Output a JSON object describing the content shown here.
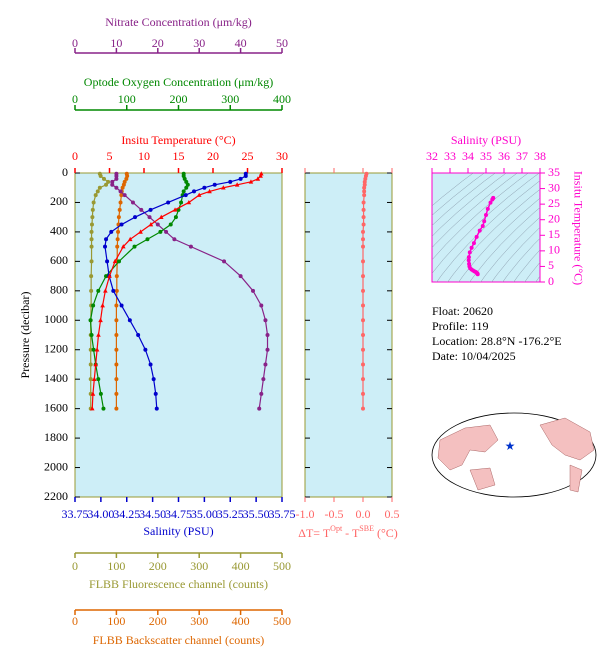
{
  "chart_data": [
    {
      "type": "profile",
      "ylabel": "Pressure (decibar)",
      "ylim": [
        0,
        2200
      ],
      "yticks": [
        0,
        200,
        400,
        600,
        800,
        1000,
        1200,
        1400,
        1600,
        1800,
        2000,
        2200
      ],
      "pressure": [
        5,
        20,
        40,
        60,
        80,
        100,
        125,
        150,
        200,
        250,
        300,
        350,
        400,
        450,
        500,
        600,
        700,
        800,
        900,
        1000,
        1100,
        1200,
        1300,
        1400,
        1500,
        1600
      ],
      "series": [
        {
          "name": "Insitu Temperature (°C)",
          "color": "#ff0000",
          "xlim": [
            0,
            30
          ],
          "xticks": [
            0,
            5,
            10,
            15,
            20,
            25,
            30
          ],
          "values": [
            27.0,
            26.9,
            26.5,
            25.5,
            23.5,
            21.5,
            19.5,
            18.0,
            16.5,
            14.5,
            12.5,
            11.0,
            9.5,
            8.0,
            7.0,
            5.8,
            5.0,
            4.4,
            4.0,
            3.7,
            3.4,
            3.2,
            3.0,
            2.8,
            2.6,
            2.5
          ]
        },
        {
          "name": "Salinity (PSU)",
          "color": "#0000cc",
          "xlim": [
            33.75,
            35.75
          ],
          "xticks": [
            33.75,
            {
              "value": 34,
              "label": "34.00"
            },
            34.25,
            {
              "value": 34.5,
              "label": "34.50"
            },
            34.75,
            {
              "value": 35,
              "label": "35.00"
            },
            35.25,
            {
              "value": 35.5,
              "label": "35.50"
            },
            35.75
          ],
          "values": [
            35.4,
            35.4,
            35.35,
            35.25,
            35.1,
            35.0,
            34.9,
            34.82,
            34.65,
            34.48,
            34.33,
            34.2,
            34.1,
            34.05,
            34.04,
            34.06,
            34.08,
            34.12,
            34.2,
            34.28,
            34.36,
            34.43,
            34.48,
            34.51,
            34.53,
            34.54
          ]
        },
        {
          "name": "Optode Oxygen Concentration (μm/kg)",
          "color": "#008800",
          "xlim": [
            0,
            400
          ],
          "xticks": [
            0,
            100,
            200,
            300,
            400
          ],
          "values": [
            210,
            210,
            212,
            215,
            218,
            215,
            210,
            208,
            205,
            200,
            195,
            185,
            165,
            140,
            115,
            85,
            60,
            45,
            35,
            30,
            32,
            36,
            40,
            45,
            50,
            55
          ]
        },
        {
          "name": "Nitrate Concentration (μm/kg)",
          "color": "#882288",
          "xlim": [
            0,
            50
          ],
          "xticks": [
            0,
            10,
            20,
            30,
            40,
            50
          ],
          "values": [
            10,
            10,
            10,
            9,
            9,
            10,
            11,
            12,
            14,
            16,
            18,
            20,
            22,
            24,
            28,
            36,
            40,
            43,
            45,
            46,
            46.5,
            46.5,
            46,
            45.5,
            45,
            44.5
          ]
        },
        {
          "name": "FLBB Fluorescence channel (counts)",
          "color": "#999933",
          "xlim": [
            0,
            500
          ],
          "xticks": [
            0,
            100,
            200,
            300,
            400,
            500
          ],
          "values": [
            60,
            62,
            70,
            80,
            75,
            60,
            55,
            50,
            45,
            43,
            42,
            41,
            40,
            40,
            40,
            40,
            39,
            39,
            39,
            38,
            38,
            38,
            38,
            38,
            38,
            38
          ]
        },
        {
          "name": "FLBB Backscatter channel (counts)",
          "color": "#dd6600",
          "xlim": [
            0,
            500
          ],
          "xticks": [
            0,
            100,
            200,
            300,
            400,
            500
          ],
          "values": [
            125,
            126,
            124,
            120,
            118,
            115,
            113,
            112,
            110,
            108,
            106,
            105,
            104,
            103,
            102,
            102,
            101,
            101,
            100,
            100,
            100,
            100,
            100,
            100,
            100,
            100
          ]
        }
      ]
    },
    {
      "type": "profile",
      "xlabel": [
        "ΔT= T",
        "Opt",
        " - T",
        "SBE",
        " (°C)"
      ],
      "color": "#ff6666",
      "xlim": [
        -1,
        0.5
      ],
      "xticks": [
        {
          "value": -1,
          "label": "-1.0"
        },
        -0.5,
        {
          "value": 0,
          "label": "0.0"
        },
        0.5
      ],
      "values": [
        0.06,
        0.05,
        0.04,
        0.03,
        0.03,
        0.02,
        0.02,
        0.02,
        0.01,
        0.01,
        0.01,
        0.01,
        0.0,
        0.0,
        0.0,
        0.0,
        0.0,
        0.0,
        0.0,
        0.0,
        0.0,
        0.0,
        0.0,
        0.0,
        0.0,
        0.0
      ]
    },
    {
      "type": "scatter",
      "xlabel": "Salinity (PSU)",
      "ylabel": "Insitu Temperature (°C)",
      "color": "#ff00cc",
      "xlim": [
        32,
        38
      ],
      "xticks": [
        32,
        33,
        34,
        35,
        36,
        37,
        38
      ],
      "ylim": [
        0,
        35
      ],
      "yticks": [
        0,
        5,
        10,
        15,
        20,
        25,
        30,
        35
      ]
    }
  ],
  "info": [
    "Float:  20620",
    "Profile:  119",
    "Location:  28.8°N  -176.2°E",
    "Date:  10/04/2025"
  ]
}
